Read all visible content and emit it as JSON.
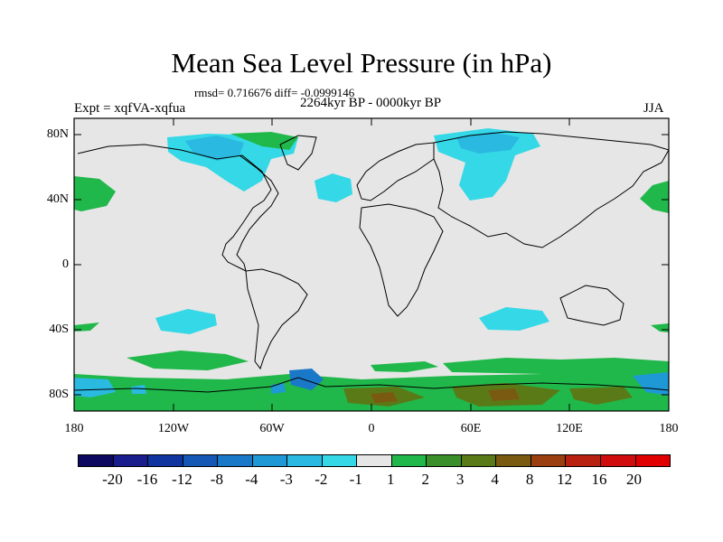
{
  "title": "Mean Sea Level Pressure (in hPa)",
  "stats_text": "rmsd= 0.716676 diff= -0.0999146",
  "period_text": "2264kyr BP - 0000kyr BP",
  "expt_text": "Expt = xqfVA-xqfua",
  "season": "JJA",
  "lat_labels": [
    "80N",
    "40N",
    "0",
    "40S",
    "80S"
  ],
  "lon_labels": [
    "180",
    "120W",
    "60W",
    "0",
    "60E",
    "120E",
    "180"
  ],
  "colorbar": {
    "labels": [
      "-20",
      "-16",
      "-12",
      "-8",
      "-4",
      "-3",
      "-2",
      "-1",
      "1",
      "2",
      "3",
      "4",
      "8",
      "12",
      "16",
      "20"
    ],
    "colors": [
      "#0d0860",
      "#1a1d8c",
      "#10359e",
      "#1457b5",
      "#1a78c8",
      "#1f98d6",
      "#2ab9e0",
      "#35d8e6",
      "#e6e6e6",
      "#20b84a",
      "#3a8f2a",
      "#5a7a18",
      "#7a5a10",
      "#9a4010",
      "#b82010",
      "#d00c0c",
      "#e00000"
    ]
  },
  "colors": {
    "background": "#e6e6e6",
    "coast": "#000000"
  }
}
